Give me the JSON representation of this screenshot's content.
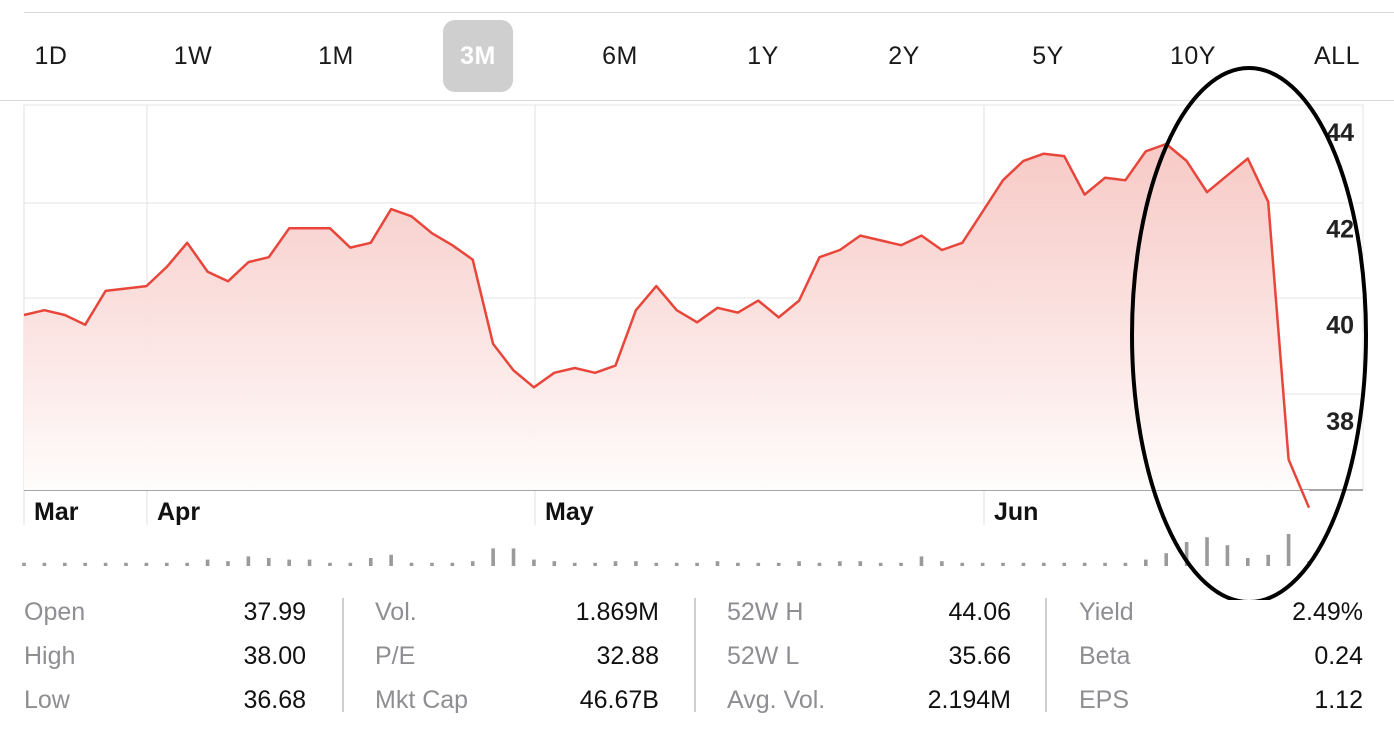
{
  "tabs": [
    {
      "label": "1D"
    },
    {
      "label": "1W"
    },
    {
      "label": "1M"
    },
    {
      "label": "3M",
      "active": true
    },
    {
      "label": "6M"
    },
    {
      "label": "1Y"
    },
    {
      "label": "2Y"
    },
    {
      "label": "5Y"
    },
    {
      "label": "10Y"
    },
    {
      "label": "ALL"
    }
  ],
  "colors": {
    "line": "#e8463a",
    "fill_top": "#f6c4c0",
    "annotation": "#000000",
    "volume": "#9a9a9a"
  },
  "chart_data": {
    "type": "area",
    "x_tick_labels": [
      "Mar",
      "Apr",
      "May",
      "Jun"
    ],
    "y_tick_labels": [
      "44",
      "42",
      "40",
      "38"
    ],
    "ylim": [
      36.0,
      44.6
    ],
    "grid": true,
    "series": [
      {
        "values": [
          40.2,
          40.3,
          40.2,
          40.0,
          40.7,
          40.75,
          40.8,
          41.2,
          41.7,
          41.1,
          40.9,
          41.3,
          41.4,
          42.0,
          42.0,
          42.0,
          41.6,
          41.7,
          42.4,
          42.25,
          41.9,
          41.65,
          41.35,
          39.6,
          39.05,
          38.7,
          39.0,
          39.1,
          39.0,
          39.15,
          40.3,
          40.8,
          40.3,
          40.05,
          40.35,
          40.25,
          40.5,
          40.15,
          40.5,
          41.4,
          41.55,
          41.85,
          41.75,
          41.65,
          41.85,
          41.55,
          41.7,
          42.35,
          43.0,
          43.4,
          43.55,
          43.5,
          42.7,
          43.05,
          43.0,
          43.6,
          43.75,
          43.4,
          42.75,
          43.1,
          43.45,
          42.55,
          37.2,
          36.2
        ]
      }
    ],
    "volume": [
      0.1,
      0.1,
      0.1,
      0.1,
      0.1,
      0.1,
      0.1,
      0.1,
      0.1,
      0.2,
      0.15,
      0.3,
      0.25,
      0.2,
      0.2,
      0.1,
      0.1,
      0.25,
      0.35,
      0.1,
      0.1,
      0.1,
      0.15,
      0.55,
      0.55,
      0.2,
      0.15,
      0.1,
      0.1,
      0.15,
      0.15,
      0.1,
      0.1,
      0.1,
      0.15,
      0.1,
      0.1,
      0.1,
      0.15,
      0.1,
      0.15,
      0.15,
      0.1,
      0.1,
      0.3,
      0.15,
      0.1,
      0.1,
      0.1,
      0.1,
      0.1,
      0.1,
      0.1,
      0.1,
      0.1,
      0.2,
      0.4,
      0.75,
      0.9,
      0.65,
      0.25,
      0.35,
      1.0,
      0.15
    ]
  },
  "stats": [
    {
      "label": "Open",
      "value": "37.99"
    },
    {
      "label": "High",
      "value": "38.00"
    },
    {
      "label": "Low",
      "value": "36.68"
    },
    {
      "label": "Vol.",
      "value": "1.869M"
    },
    {
      "label": "P/E",
      "value": "32.88"
    },
    {
      "label": "Mkt Cap",
      "value": "46.67B"
    },
    {
      "label": "52W H",
      "value": "44.06"
    },
    {
      "label": "52W L",
      "value": "35.66"
    },
    {
      "label": "Avg. Vol.",
      "value": "2.194M"
    },
    {
      "label": "Yield",
      "value": "2.49%"
    },
    {
      "label": "Beta",
      "value": "0.24"
    },
    {
      "label": "EPS",
      "value": "1.12"
    }
  ]
}
